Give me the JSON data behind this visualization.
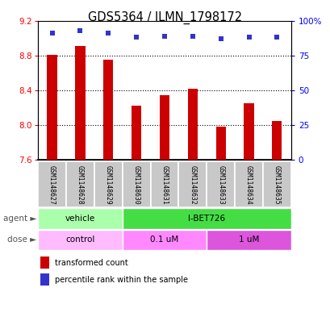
{
  "title": "GDS5364 / ILMN_1798172",
  "samples": [
    "GSM1148627",
    "GSM1148628",
    "GSM1148629",
    "GSM1148630",
    "GSM1148631",
    "GSM1148632",
    "GSM1148633",
    "GSM1148634",
    "GSM1148635"
  ],
  "bar_values": [
    8.81,
    8.91,
    8.75,
    8.22,
    8.34,
    8.42,
    7.98,
    8.25,
    8.05
  ],
  "dot_values": [
    91,
    93,
    91,
    88,
    89,
    89,
    87,
    88,
    88
  ],
  "ylim": [
    7.6,
    9.2
  ],
  "yticks_left": [
    7.6,
    8.0,
    8.4,
    8.8,
    9.2
  ],
  "yticks_right": [
    0,
    25,
    50,
    75,
    100
  ],
  "right_ylim": [
    0,
    100
  ],
  "bar_color": "#cc0000",
  "dot_color": "#3333cc",
  "agent_data": [
    {
      "text": "vehicle",
      "start": 0,
      "end": 3,
      "color": "#aaffaa"
    },
    {
      "text": "I-BET726",
      "start": 3,
      "end": 9,
      "color": "#44dd44"
    }
  ],
  "dose_data": [
    {
      "text": "control",
      "start": 0,
      "end": 3,
      "color": "#ffbbff"
    },
    {
      "text": "0.1 uM",
      "start": 3,
      "end": 6,
      "color": "#ff88ff"
    },
    {
      "text": "1 uM",
      "start": 6,
      "end": 9,
      "color": "#dd55dd"
    }
  ],
  "legend_items": [
    {
      "color": "#cc0000",
      "label": "transformed count"
    },
    {
      "color": "#3333cc",
      "label": "percentile rank within the sample"
    }
  ],
  "bar_base": 7.6,
  "bar_width": 0.35,
  "bg_color": "#ffffff",
  "grid_yticks": [
    8.0,
    8.4,
    8.8
  ]
}
